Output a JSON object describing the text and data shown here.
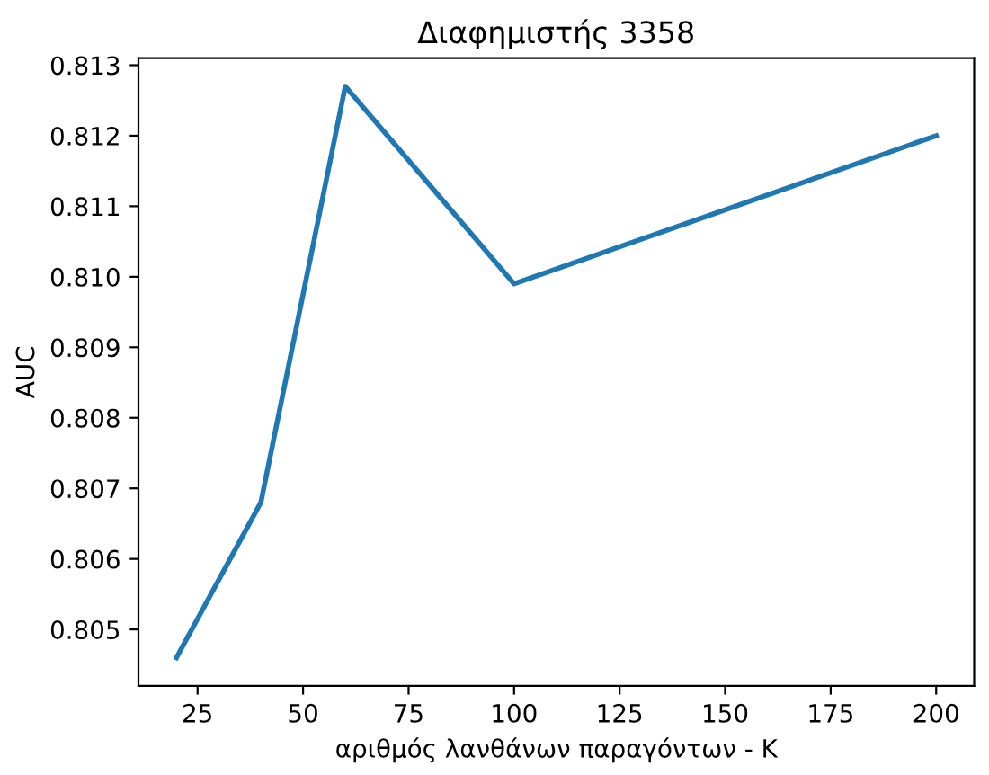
{
  "chart_data": {
    "type": "line",
    "title": "Διαφημιστής 3358",
    "xlabel": "αριθμός λανθάνων παραγόντων - K",
    "ylabel": "AUC",
    "x": [
      20,
      40,
      60,
      100,
      200
    ],
    "series": [
      {
        "color": "#1f77b4",
        "values": [
          0.8046,
          0.8068,
          0.8127,
          0.8099,
          0.812
        ]
      }
    ],
    "xlim": [
      11,
      209
    ],
    "ylim": [
      0.8042,
      0.8131
    ],
    "xticks": [
      25,
      50,
      75,
      100,
      125,
      150,
      175,
      200
    ],
    "yticks": [
      0.805,
      0.806,
      0.807,
      0.808,
      0.809,
      {
        "value": 0.81,
        "label": "0.810"
      },
      0.811,
      0.812,
      0.813
    ],
    "grid": false,
    "legend": false,
    "marker": "none",
    "line_style": "solid"
  }
}
